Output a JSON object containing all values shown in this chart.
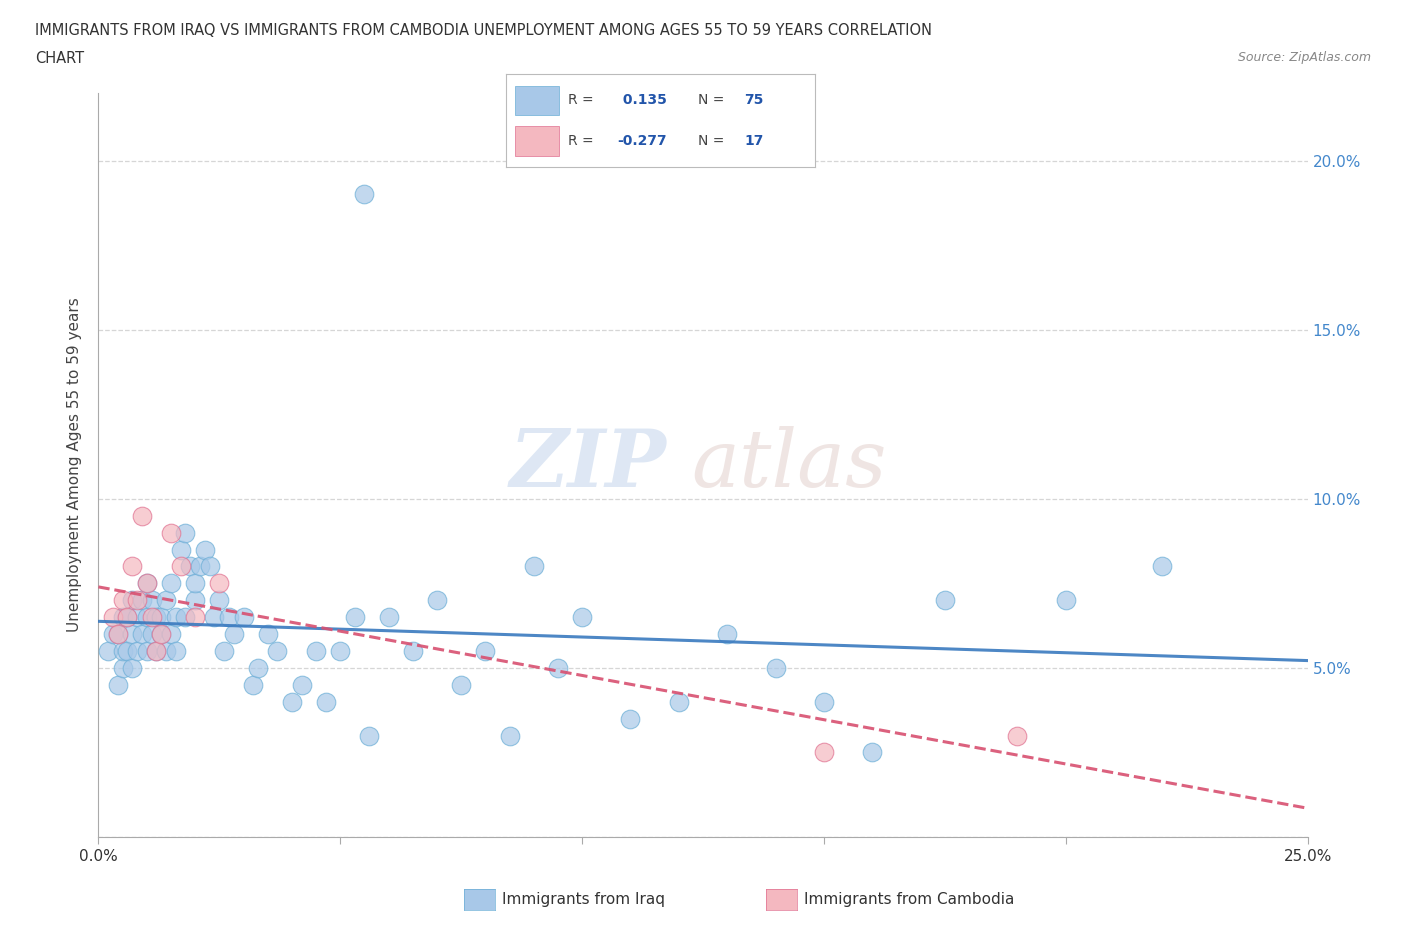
{
  "title_line1": "IMMIGRANTS FROM IRAQ VS IMMIGRANTS FROM CAMBODIA UNEMPLOYMENT AMONG AGES 55 TO 59 YEARS CORRELATION",
  "title_line2": "CHART",
  "source_text": "Source: ZipAtlas.com",
  "ylabel": "Unemployment Among Ages 55 to 59 years",
  "xlim": [
    0.0,
    0.25
  ],
  "ylim": [
    0.0,
    0.22
  ],
  "iraq_color": "#a8c8e8",
  "iraq_edge_color": "#6baed6",
  "cambodia_color": "#f4b8c0",
  "cambodia_edge_color": "#e07090",
  "iraq_line_color": "#3a7abf",
  "cambodia_line_color": "#d85070",
  "iraq_R": 0.135,
  "iraq_N": 75,
  "cambodia_R": -0.277,
  "cambodia_N": 17,
  "background_color": "#ffffff",
  "iraq_x": [
    0.002,
    0.003,
    0.004,
    0.004,
    0.005,
    0.005,
    0.005,
    0.006,
    0.006,
    0.007,
    0.007,
    0.007,
    0.008,
    0.008,
    0.009,
    0.009,
    0.01,
    0.01,
    0.01,
    0.011,
    0.011,
    0.012,
    0.012,
    0.013,
    0.013,
    0.014,
    0.014,
    0.015,
    0.015,
    0.016,
    0.016,
    0.017,
    0.018,
    0.018,
    0.019,
    0.02,
    0.02,
    0.021,
    0.022,
    0.023,
    0.024,
    0.025,
    0.026,
    0.027,
    0.028,
    0.03,
    0.032,
    0.033,
    0.035,
    0.037,
    0.04,
    0.042,
    0.045,
    0.047,
    0.05,
    0.053,
    0.056,
    0.06,
    0.065,
    0.07,
    0.075,
    0.08,
    0.085,
    0.09,
    0.095,
    0.1,
    0.11,
    0.12,
    0.13,
    0.14,
    0.15,
    0.16,
    0.175,
    0.2,
    0.22
  ],
  "iraq_y": [
    0.055,
    0.06,
    0.045,
    0.06,
    0.05,
    0.055,
    0.065,
    0.055,
    0.065,
    0.05,
    0.06,
    0.07,
    0.055,
    0.065,
    0.06,
    0.07,
    0.055,
    0.065,
    0.075,
    0.06,
    0.07,
    0.055,
    0.065,
    0.06,
    0.065,
    0.07,
    0.055,
    0.06,
    0.075,
    0.065,
    0.055,
    0.085,
    0.065,
    0.09,
    0.08,
    0.07,
    0.075,
    0.08,
    0.085,
    0.08,
    0.065,
    0.07,
    0.055,
    0.065,
    0.06,
    0.065,
    0.045,
    0.05,
    0.06,
    0.055,
    0.04,
    0.045,
    0.055,
    0.04,
    0.055,
    0.065,
    0.03,
    0.065,
    0.055,
    0.07,
    0.045,
    0.055,
    0.03,
    0.08,
    0.05,
    0.065,
    0.035,
    0.04,
    0.06,
    0.05,
    0.04,
    0.025,
    0.07,
    0.07,
    0.08
  ],
  "iraq_outlier_x": [
    0.055
  ],
  "iraq_outlier_y": [
    0.19
  ],
  "cambodia_x": [
    0.003,
    0.004,
    0.005,
    0.006,
    0.007,
    0.008,
    0.009,
    0.01,
    0.011,
    0.012,
    0.013,
    0.015,
    0.017,
    0.02,
    0.025,
    0.15,
    0.19
  ],
  "cambodia_y": [
    0.065,
    0.06,
    0.07,
    0.065,
    0.08,
    0.07,
    0.095,
    0.075,
    0.065,
    0.055,
    0.06,
    0.09,
    0.08,
    0.065,
    0.075,
    0.025,
    0.03
  ]
}
